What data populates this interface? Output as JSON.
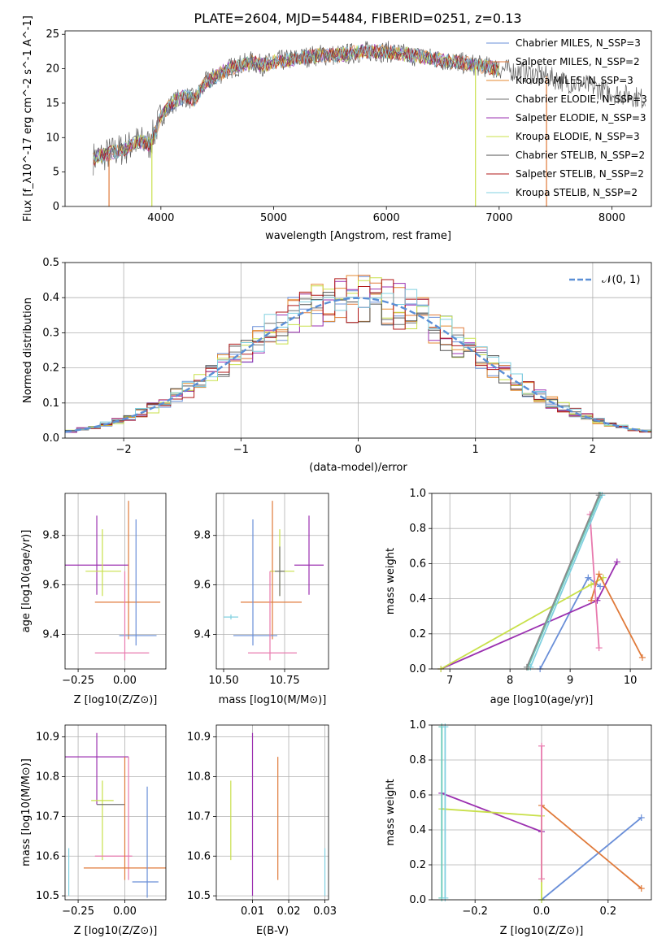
{
  "title": "PLATE=2604, MJD=54484, FIBERID=0251, z=0.13",
  "colors": {
    "chabrier_miles": "#6a8fd8",
    "salpeter_miles": "#e07a3a",
    "kroupa_miles": "#e58a30",
    "chabrier_elodie": "#707070",
    "salpeter_elodie": "#9b30b0",
    "kroupa_elodie": "#c8e04a",
    "chabrier_stelib": "#505050",
    "salpeter_stelib": "#b01818",
    "kroupa_stelib": "#80d0e0",
    "pink": "#e87aae",
    "teal": "#66c8b8",
    "normal_curve": "#5b8fd6"
  },
  "chart_data": [
    {
      "type": "line",
      "xlabel": "wavelength [Angstrom, rest frame]",
      "ylabel": "Flux [f_λ10^-17 erg cm^-2 s^-1 A^-1]",
      "xlim": [
        3150,
        8350
      ],
      "ylim": [
        0,
        25.5
      ],
      "xticks": [
        4000,
        5000,
        6000,
        7000,
        8000
      ],
      "yticks": [
        0,
        5,
        10,
        15,
        20,
        25
      ],
      "grid": false,
      "legend_position": "right",
      "legend": [
        {
          "label": "Chabrier MILES, N_SSP=3",
          "color": "#6a8fd8"
        },
        {
          "label": "Salpeter MILES, N_SSP=2",
          "color": "#e07a3a"
        },
        {
          "label": "Kroupa MILES, N_SSP=3",
          "color": "#e58a30"
        },
        {
          "label": "Chabrier ELODIE, N_SSP=3",
          "color": "#707070"
        },
        {
          "label": "Salpeter ELODIE, N_SSP=3",
          "color": "#9b30b0"
        },
        {
          "label": "Kroupa ELODIE, N_SSP=3",
          "color": "#c8e04a"
        },
        {
          "label": "Chabrier STELIB, N_SSP=2",
          "color": "#505050"
        },
        {
          "label": "Salpeter STELIB, N_SSP=2",
          "color": "#b01818"
        },
        {
          "label": "Kroupa STELIB, N_SSP=2",
          "color": "#80d0e0"
        }
      ],
      "series": [
        {
          "x": [
            3400,
            3500,
            3600,
            3700,
            3800,
            3900,
            4000,
            4100,
            4200,
            4300,
            4400,
            4500,
            4600,
            4700,
            4800,
            4900,
            5000,
            5200,
            5400,
            5600,
            5800,
            6000,
            6200,
            6400,
            6600,
            6800,
            7000,
            7200,
            7400,
            7600,
            7800,
            8000,
            8200,
            8300
          ],
          "y": [
            7,
            7.5,
            8,
            8.5,
            9.5,
            9,
            13,
            15,
            16,
            15.5,
            18,
            19,
            20,
            20.5,
            21,
            20.5,
            21,
            21.5,
            22,
            22,
            22.5,
            22.5,
            22,
            21.5,
            21,
            20.5,
            20,
            19.5,
            19,
            18,
            17.5,
            16.5,
            16,
            15.5
          ]
        }
      ]
    },
    {
      "type": "histogram",
      "xlabel": "(data-model)/error",
      "ylabel": "Normed distribution",
      "xlim": [
        -2.5,
        2.5
      ],
      "ylim": [
        0,
        0.5
      ],
      "xticks": [
        -2,
        -1,
        0,
        1,
        2
      ],
      "yticks": [
        0.0,
        0.1,
        0.2,
        0.3,
        0.4,
        0.5
      ],
      "grid": true,
      "legend_position": "top-right",
      "legend": [
        {
          "label": "𝒩(0, 1)",
          "color": "#5b8fd6",
          "style": "dashed"
        }
      ],
      "series": [
        {
          "name": "𝒩(0, 1)",
          "mu": 0,
          "sigma": 1
        }
      ]
    },
    {
      "type": "scatter",
      "xlabel": "Z [log10(Z/Z⊙)]",
      "ylabel": "age  [log10(age/yr)]",
      "xlim": [
        -0.32,
        0.22
      ],
      "ylim": [
        9.26,
        9.97
      ],
      "xticks": [
        -0.25,
        0.0
      ],
      "xticklabels": [
        "−0.25",
        "0.00"
      ],
      "yticks": [
        9.4,
        9.6,
        9.8
      ],
      "grid": true,
      "points": [
        {
          "x": -0.15,
          "y": 9.68,
          "xerr": [
            0.17,
            0.17
          ],
          "yerr": [
            0.12,
            0.2
          ],
          "color": "#9b30b0"
        },
        {
          "x": -0.12,
          "y": 9.655,
          "xerr": [
            0.09,
            0.1
          ],
          "yerr": [
            0.1,
            0.17
          ],
          "color": "#c8e04a"
        },
        {
          "x": 0.02,
          "y": 9.53,
          "xerr": [
            0.18,
            0.17
          ],
          "yerr": [
            0.15,
            0.41
          ],
          "color": "#e07a3a"
        },
        {
          "x": 0.06,
          "y": 9.395,
          "xerr": [
            0.09,
            0.11
          ],
          "yerr": [
            0.04,
            0.47
          ],
          "color": "#6a8fd8"
        },
        {
          "x": 0.0,
          "y": 9.325,
          "xerr": [
            0.16,
            0.13
          ],
          "yerr": [
            0.03,
            0.33
          ],
          "color": "#e87aae"
        }
      ]
    },
    {
      "type": "scatter",
      "xlabel": "mass [log10(M/M⊙)]",
      "ylabel": "",
      "xlim": [
        10.47,
        10.93
      ],
      "ylim": [
        9.26,
        9.97
      ],
      "xticks": [
        10.5,
        10.75
      ],
      "xticklabels": [
        "10.50",
        "10.75"
      ],
      "yticks": [
        9.4,
        9.6,
        9.8
      ],
      "grid": true,
      "points": [
        {
          "x": 10.85,
          "y": 9.68,
          "xerr": [
            0.06,
            0.06
          ],
          "yerr": [
            0.12,
            0.2
          ],
          "color": "#9b30b0"
        },
        {
          "x": 10.73,
          "y": 9.655,
          "xerr": [
            0.04,
            0.06
          ],
          "yerr": [
            0.1,
            0.17
          ],
          "color": "#c8e04a"
        },
        {
          "x": 10.73,
          "y": 9.655,
          "xerr": [
            0.02,
            0.02
          ],
          "yerr": [
            0.1,
            0.1
          ],
          "color": "#707070"
        },
        {
          "x": 10.7,
          "y": 9.53,
          "xerr": [
            0.13,
            0.12
          ],
          "yerr": [
            0.15,
            0.41
          ],
          "color": "#e07a3a"
        },
        {
          "x": 10.62,
          "y": 9.395,
          "xerr": [
            0.08,
            0.1
          ],
          "yerr": [
            0.04,
            0.47
          ],
          "color": "#6a8fd8"
        },
        {
          "x": 10.69,
          "y": 9.325,
          "xerr": [
            0.09,
            0.11
          ],
          "yerr": [
            0.03,
            0.33
          ],
          "color": "#e87aae"
        },
        {
          "x": 10.53,
          "y": 9.47,
          "xerr": [
            0.03,
            0.03
          ],
          "yerr": [
            0.01,
            0.01
          ],
          "color": "#80d0e0"
        }
      ]
    },
    {
      "type": "line",
      "xlabel": "age  [log10(age/yr)]",
      "ylabel": "mass weight",
      "xlim": [
        6.7,
        10.35
      ],
      "ylim": [
        0,
        1
      ],
      "xticks": [
        7,
        8,
        9,
        10
      ],
      "yticks": [
        0.0,
        0.2,
        0.4,
        0.6,
        0.8,
        1.0
      ],
      "grid": true,
      "series": [
        {
          "color": "#6a8fd8",
          "x": [
            8.5,
            9.3,
            9.5
          ],
          "y": [
            0.0,
            0.52,
            0.47
          ]
        },
        {
          "color": "#9b30b0",
          "x": [
            6.85,
            9.45,
            9.78
          ],
          "y": [
            0.0,
            0.39,
            0.61
          ]
        },
        {
          "color": "#c8e04a",
          "x": [
            6.85,
            9.55,
            9.35
          ],
          "y": [
            0.0,
            0.52,
            0.48
          ]
        },
        {
          "color": "#e07a3a",
          "x": [
            9.35,
            9.48,
            10.2
          ],
          "y": [
            0.39,
            0.54,
            0.065
          ]
        },
        {
          "color": "#e87aae",
          "x": [
            9.33,
            9.48
          ],
          "y": [
            0.88,
            0.12
          ]
        },
        {
          "color": "#66c8b8",
          "x": [
            8.3,
            9.5
          ],
          "y": [
            0.01,
            0.99
          ]
        },
        {
          "color": "#80d0e0",
          "x": [
            8.34,
            9.53
          ],
          "y": [
            0.01,
            0.99
          ]
        },
        {
          "color": "#8a8a8a",
          "x": [
            8.28,
            9.48
          ],
          "y": [
            0.01,
            0.99
          ]
        }
      ]
    },
    {
      "type": "scatter",
      "xlabel": "Z [log10(Z/Z⊙)]",
      "ylabel": "mass [log10(M/M⊙)]",
      "xlim": [
        -0.32,
        0.22
      ],
      "ylim": [
        10.49,
        10.93
      ],
      "xticks": [
        -0.25,
        0.0
      ],
      "xticklabels": [
        "−0.25",
        "0.00"
      ],
      "yticks": [
        10.5,
        10.6,
        10.7,
        10.8,
        10.9
      ],
      "grid": true,
      "points": [
        {
          "x": -0.15,
          "y": 10.85,
          "xerr": [
            0.17,
            0.17
          ],
          "yerr": [
            0.12,
            0.06
          ],
          "color": "#9b30b0"
        },
        {
          "x": -0.12,
          "y": 10.74,
          "xerr": [
            0.06,
            0.06
          ],
          "yerr": [
            0.15,
            0.05
          ],
          "color": "#c8e04a"
        },
        {
          "x": -0.05,
          "y": 10.73,
          "xerr": [
            0.1,
            0.05
          ],
          "yerr": [
            0.0,
            0.0
          ],
          "color": "#707070"
        },
        {
          "x": 0.02,
          "y": 10.6,
          "xerr": [
            0.18,
            0.02
          ],
          "yerr": [
            0.06,
            0.25
          ],
          "color": "#e87aae"
        },
        {
          "x": 0.0,
          "y": 10.57,
          "xerr": [
            0.22,
            0.22
          ],
          "yerr": [
            0.03,
            0.28
          ],
          "color": "#e07a3a"
        },
        {
          "x": 0.12,
          "y": 10.535,
          "xerr": [
            0.08,
            0.06
          ],
          "yerr": [
            0.04,
            0.24
          ],
          "color": "#6a8fd8"
        },
        {
          "x": -0.3,
          "y": 10.56,
          "xerr": [
            0.0,
            0.0
          ],
          "yerr": [
            0.06,
            0.06
          ],
          "color": "#80d0e0"
        }
      ]
    },
    {
      "type": "scatter",
      "xlabel": "E(B-V)",
      "ylabel": "",
      "xlim": [
        0.0,
        0.031
      ],
      "ylim": [
        10.49,
        10.93
      ],
      "xticks": [
        0.01,
        0.02,
        0.03
      ],
      "xticklabels": [
        "0.01",
        "0.02",
        "0.03"
      ],
      "yticks": [
        10.5,
        10.6,
        10.7,
        10.8,
        10.9
      ],
      "grid": true,
      "points": [
        {
          "x": 0.01,
          "y": 10.72,
          "xerr": [
            0,
            0
          ],
          "yerr": [
            0.22,
            0.19
          ],
          "color": "#9b30b0"
        },
        {
          "x": 0.004,
          "y": 10.69,
          "xerr": [
            0,
            0
          ],
          "yerr": [
            0.1,
            0.1
          ],
          "color": "#c8e04a"
        },
        {
          "x": 0.017,
          "y": 10.7,
          "xerr": [
            0,
            0
          ],
          "yerr": [
            0.16,
            0.15
          ],
          "color": "#e07a3a"
        },
        {
          "x": 0.03,
          "y": 10.56,
          "xerr": [
            0,
            0
          ],
          "yerr": [
            0.06,
            0.06
          ],
          "color": "#80d0e0"
        }
      ]
    },
    {
      "type": "line",
      "xlabel": "Z [log10(Z/Z⊙)]",
      "ylabel": "mass weight",
      "xlim": [
        -0.33,
        0.33
      ],
      "ylim": [
        0,
        1
      ],
      "xticks": [
        -0.2,
        0.0,
        0.2
      ],
      "xticklabels": [
        "−0.2",
        "0.0",
        "0.2"
      ],
      "yticks": [
        0.0,
        0.2,
        0.4,
        0.6,
        0.8,
        1.0
      ],
      "grid": true,
      "series": [
        {
          "color": "#6a8fd8",
          "x": [
            0.0,
            0.3
          ],
          "y": [
            0.0,
            0.47
          ]
        },
        {
          "color": "#e07a3a",
          "x": [
            0.0,
            0.3
          ],
          "y": [
            0.54,
            0.065
          ]
        },
        {
          "color": "#9b30b0",
          "x": [
            -0.3,
            0.0
          ],
          "y": [
            0.61,
            0.39
          ]
        },
        {
          "color": "#c8e04a",
          "x": [
            -0.3,
            0.0,
            0.0
          ],
          "y": [
            0.52,
            0.48,
            0.0
          ]
        },
        {
          "color": "#e87aae",
          "x": [
            0.0,
            0.0
          ],
          "y": [
            0.12,
            0.88
          ]
        },
        {
          "color": "#66c8b8",
          "x": [
            -0.3,
            -0.3
          ],
          "y": [
            0.01,
            0.99
          ]
        },
        {
          "color": "#80d0e0",
          "x": [
            -0.29,
            -0.29
          ],
          "y": [
            0.01,
            0.99
          ]
        }
      ]
    }
  ]
}
